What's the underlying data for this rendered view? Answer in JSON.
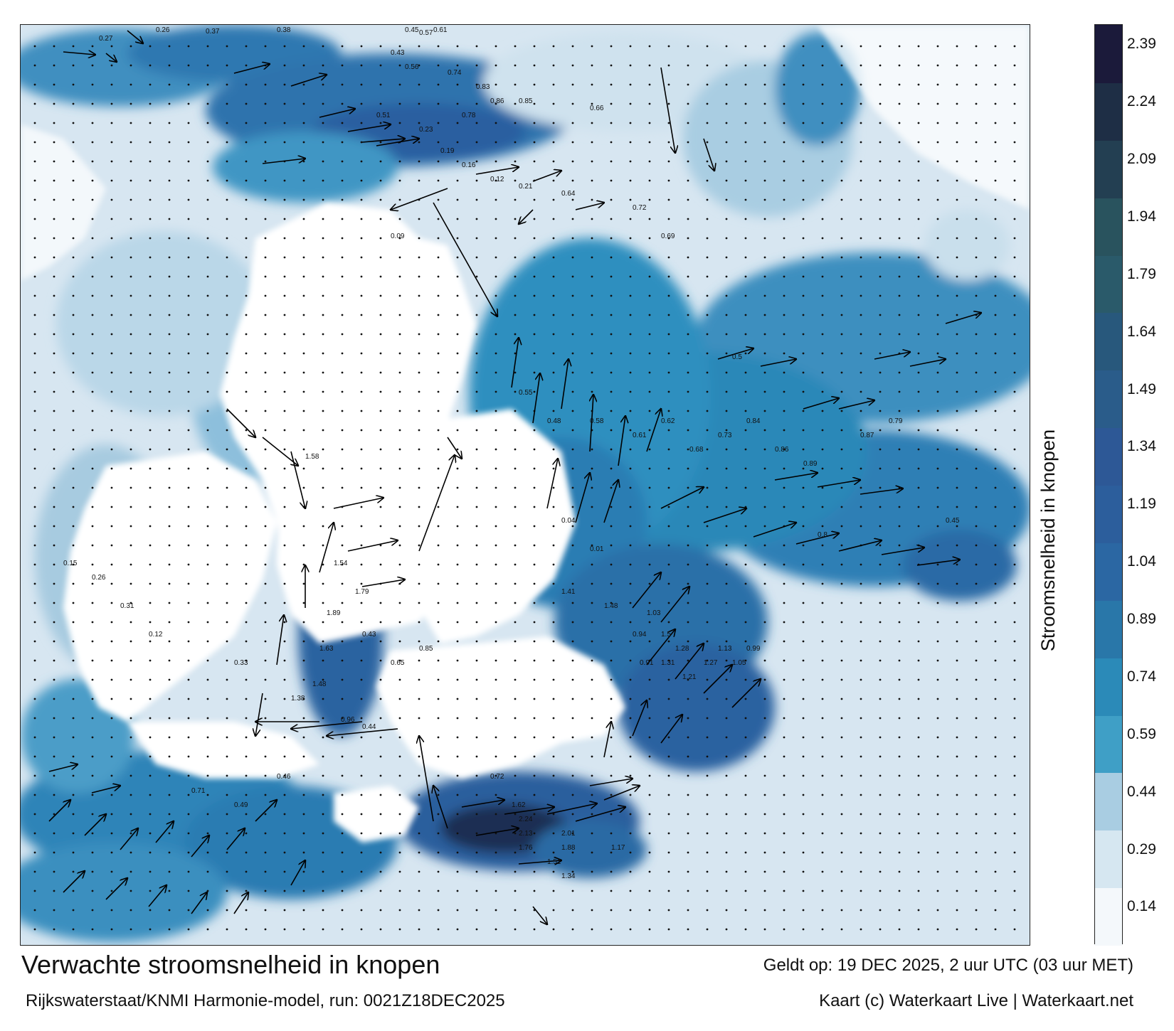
{
  "map": {
    "title": "Verwachte stroomsnelheid in knopen",
    "model": "Rijkswaterstaat/KNMI Harmonie-model, run: 0021Z18DEC2025",
    "valid_time": "Geldt op: 19 DEC 2025, 2 uur UTC (03 uur MET)",
    "credit": "Kaart (c) Waterkaart Live | Waterkaart.net"
  },
  "legend": {
    "title": "Stroomsnelheid in knopen",
    "ticks": [
      "0.14",
      "0.29",
      "0.44",
      "0.59",
      "0.74",
      "0.89",
      "1.04",
      "1.19",
      "1.34",
      "1.49",
      "1.64",
      "1.79",
      "1.94",
      "2.09",
      "2.24",
      "2.39"
    ],
    "colors": [
      "#f4f8fb",
      "#d6e7f1",
      "#a9cde2",
      "#3f9fc6",
      "#2b8ab8",
      "#2977a9",
      "#2b67a3",
      "#2c5e9c",
      "#2d5896",
      "#2a5c8a",
      "#28587c",
      "#2a5a6a",
      "#29535e",
      "#233f52",
      "#1e2e45",
      "#1b1a3a"
    ]
  },
  "annotations": [
    {
      "label": "0.27"
    },
    {
      "label": "0.26"
    },
    {
      "label": "0.37"
    },
    {
      "label": "0.38"
    },
    {
      "label": "0.45"
    },
    {
      "label": "0.57"
    },
    {
      "label": "0.61"
    },
    {
      "label": "0.43"
    },
    {
      "label": "0.56"
    },
    {
      "label": "0.74"
    },
    {
      "label": "0.83"
    },
    {
      "label": "0.86"
    },
    {
      "label": "0.85"
    },
    {
      "label": "0.78"
    },
    {
      "label": "0.51"
    },
    {
      "label": "0.23"
    },
    {
      "label": "0.19"
    },
    {
      "label": "0.16"
    },
    {
      "label": "0.12"
    },
    {
      "label": "0.21"
    },
    {
      "label": "0.64"
    },
    {
      "label": "0.72"
    },
    {
      "label": "0.69"
    },
    {
      "label": "0.66"
    },
    {
      "label": "0.55"
    },
    {
      "label": "0.48"
    },
    {
      "label": "0.58"
    },
    {
      "label": "0.61"
    },
    {
      "label": "0.62"
    },
    {
      "label": "0.68"
    },
    {
      "label": "0.73"
    },
    {
      "label": "0.84"
    },
    {
      "label": "0.86"
    },
    {
      "label": "0.89"
    },
    {
      "label": "0.87"
    },
    {
      "label": "0.79"
    },
    {
      "label": "0.45"
    },
    {
      "label": "1.58"
    },
    {
      "label": "1.54"
    },
    {
      "label": "1.79"
    },
    {
      "label": "1.89"
    },
    {
      "label": "1.63"
    },
    {
      "label": "1.48"
    },
    {
      "label": "1.38"
    },
    {
      "label": "0.96"
    },
    {
      "label": "0.44"
    },
    {
      "label": "0.46"
    },
    {
      "label": "0.49"
    },
    {
      "label": "0.71"
    },
    {
      "label": "0.72"
    },
    {
      "label": "1.62"
    },
    {
      "label": "2.24"
    },
    {
      "label": "2.13"
    },
    {
      "label": "2.01"
    },
    {
      "label": "1.88"
    },
    {
      "label": "1.76"
    },
    {
      "label": "1.51"
    },
    {
      "label": "1.34"
    },
    {
      "label": "1.17"
    },
    {
      "label": "1.03"
    },
    {
      "label": "1.5"
    },
    {
      "label": "1.28"
    },
    {
      "label": "1.31"
    },
    {
      "label": "1.21"
    },
    {
      "label": "1.27"
    },
    {
      "label": "1.13"
    },
    {
      "label": "1.05"
    },
    {
      "label": "0.99"
    },
    {
      "label": "0.91"
    },
    {
      "label": "0.94"
    },
    {
      "label": "1.48"
    },
    {
      "label": "1.41"
    },
    {
      "label": "0.85"
    },
    {
      "label": "0.65"
    },
    {
      "label": "0.43"
    },
    {
      "label": "0.33"
    },
    {
      "label": "0.12"
    },
    {
      "label": "0.31"
    },
    {
      "label": "0.26"
    },
    {
      "label": "0.15"
    },
    {
      "label": "0.09"
    },
    {
      "label": "0.04"
    },
    {
      "label": "0.01"
    },
    {
      "label": "0.5"
    },
    {
      "label": "0.8"
    }
  ]
}
